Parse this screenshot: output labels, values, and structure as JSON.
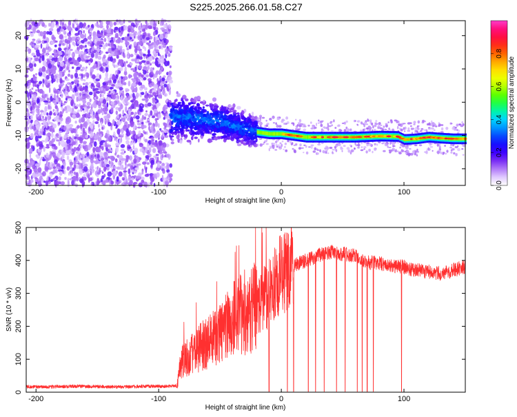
{
  "page": {
    "title": "S225.2025.266.01.58.C27"
  },
  "chart_data": [
    {
      "type": "heatmap",
      "title": "S225.2025.266.01.58.C27",
      "xlabel": "Height of straight line (km)",
      "ylabel": "Frequency (Hz)",
      "xlim": [
        -208,
        150
      ],
      "ylim": [
        -25,
        24.5
      ],
      "xticks": [
        -200,
        -100,
        0,
        100
      ],
      "yticks": [
        -20,
        -10,
        0,
        10,
        20
      ],
      "colorbar": {
        "label": "Normalized spectral amplitude",
        "range": [
          0,
          1
        ],
        "ticks": [
          0.0,
          0.2,
          0.4,
          0.6,
          0.8
        ],
        "colors": [
          "#ffffff",
          "#d6b8ff",
          "#8c3cf0",
          "#3c00ff",
          "#0a14ff",
          "#0080ff",
          "#00d4ff",
          "#00ff8c",
          "#40ff00",
          "#b4ff00",
          "#ffff00",
          "#ffbe00",
          "#ff6400",
          "#ff1e1e",
          "#ff0064",
          "#ff3cc8"
        ]
      },
      "regions": [
        {
          "name": "noise",
          "x_range": [
            -208,
            -90
          ],
          "frequency_hz": "uniform",
          "amplitude": [
            0.05,
            0.15
          ]
        },
        {
          "name": "onset",
          "x_range": [
            -90,
            -20
          ],
          "frequency_hz": [
            -7,
            -4
          ],
          "amplitude": [
            0.18,
            0.32
          ]
        },
        {
          "name": "trace",
          "x_range": [
            -20,
            150
          ],
          "frequency_hz": [
            -10,
            -11
          ],
          "amplitude": [
            0.3,
            0.92
          ]
        }
      ],
      "ridge": {
        "x": [
          -90,
          -80,
          -70,
          -60,
          -50,
          -40,
          -30,
          -20,
          -10,
          0,
          10,
          20,
          40,
          60,
          80,
          95,
          100,
          110,
          120,
          130,
          140,
          150
        ],
        "frequency_hz": [
          -5,
          -4.5,
          -5,
          -5.5,
          -6,
          -7,
          -8,
          -9,
          -9.5,
          -9.5,
          -10,
          -10.5,
          -10.5,
          -10.5,
          -10.2,
          -10.3,
          -11.2,
          -11,
          -10.5,
          -10.8,
          -11,
          -11
        ]
      }
    },
    {
      "type": "line",
      "xlabel": "Height of straight line (km)",
      "ylabel": "SNR (10 * v/v)",
      "xlim": [
        -208,
        150
      ],
      "ylim": [
        0,
        500
      ],
      "xticks": [
        -200,
        -100,
        0,
        100
      ],
      "yticks": [
        0,
        100,
        200,
        300,
        400,
        500
      ],
      "color": "#ff3030",
      "series": [
        {
          "name": "SNR",
          "x": [
            -208,
            -190,
            -170,
            -150,
            -130,
            -110,
            -95,
            -85,
            -82,
            -75,
            -65,
            -55,
            -45,
            -35,
            -25,
            -15,
            -10,
            -5,
            0,
            10,
            20,
            30,
            40,
            50,
            60,
            70,
            80,
            90,
            100,
            110,
            120,
            130,
            140,
            150
          ],
          "values": [
            17,
            16,
            18,
            17,
            16,
            18,
            18,
            19,
            90,
            110,
            140,
            160,
            200,
            230,
            250,
            280,
            300,
            330,
            360,
            385,
            400,
            415,
            425,
            420,
            415,
            395,
            390,
            385,
            380,
            370,
            365,
            360,
            370,
            380
          ]
        }
      ],
      "dropouts_x": [
        -10,
        5,
        10,
        22,
        28,
        35,
        45,
        52,
        62,
        66,
        70,
        75,
        98
      ]
    }
  ]
}
